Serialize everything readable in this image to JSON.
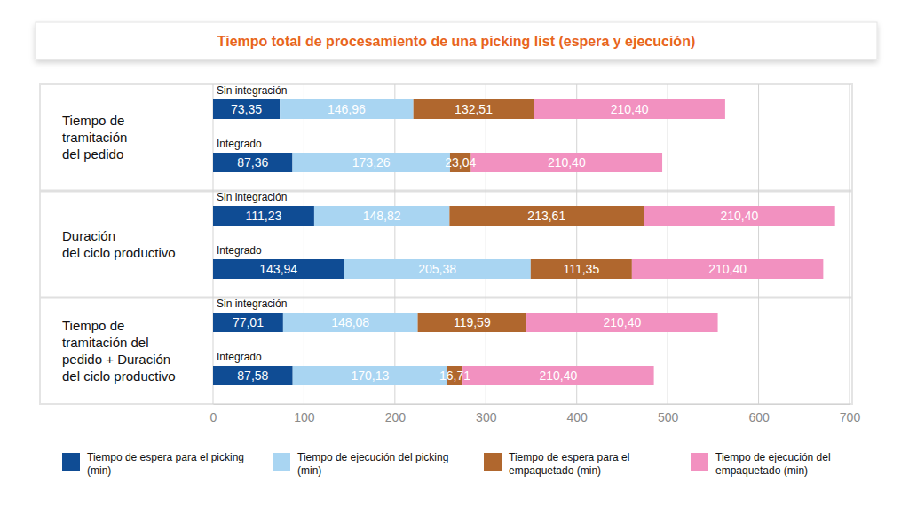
{
  "chart_data": {
    "type": "bar",
    "title": "Tiempo total de procesamiento de una picking list (espera y ejecución)",
    "orientation": "horizontal",
    "stacked": true,
    "data_labels": true,
    "grid": true,
    "groups": [
      [
        "Tiempo de",
        "tramitación",
        "del pedido"
      ],
      [
        "Duración",
        "del ciclo productivo"
      ],
      [
        "Tiempo de",
        "tramitación del",
        "pedido + Duración",
        "del ciclo productivo"
      ]
    ],
    "categories": [
      "Sin integración",
      "Integrado",
      "Sin integración",
      "Integrado",
      "Sin integración",
      "Integrado"
    ],
    "xlim": [
      0,
      700
    ],
    "xticks": [
      0,
      100,
      200,
      300,
      400,
      500,
      600,
      700
    ],
    "series": [
      {
        "name": "Tiempo de espera para el picking (min)",
        "color": "#0f4c94",
        "values": [
          73.35,
          87.36,
          111.23,
          143.94,
          77.01,
          87.58
        ],
        "value_labels": [
          "73,35",
          "87,36",
          "111,23",
          "143,94",
          "77,01",
          "87,58"
        ]
      },
      {
        "name": "Tiempo de ejecución del picking (min)",
        "color": "#a9d5f2",
        "values": [
          146.96,
          173.26,
          148.82,
          205.38,
          148.08,
          170.13
        ],
        "value_labels": [
          "146,96",
          "173,26",
          "148,82",
          "205,38",
          "148,08",
          "170,13"
        ]
      },
      {
        "name": "Tiempo de espera para el empaquetado (min)",
        "color": "#b0672e",
        "values": [
          132.51,
          23.04,
          213.61,
          111.35,
          119.59,
          16.71
        ],
        "value_labels": [
          "132,51",
          "23,04",
          "213,61",
          "111,35",
          "119,59",
          "16,71"
        ]
      },
      {
        "name": "Tiempo de ejecución del empaquetado (min)",
        "color": "#f291c0",
        "values": [
          210.4,
          210.4,
          210.4,
          210.4,
          210.4,
          210.4
        ],
        "value_labels": [
          "210,40",
          "210,40",
          "210,40",
          "210,40",
          "210,40",
          "210,40"
        ]
      }
    ]
  }
}
